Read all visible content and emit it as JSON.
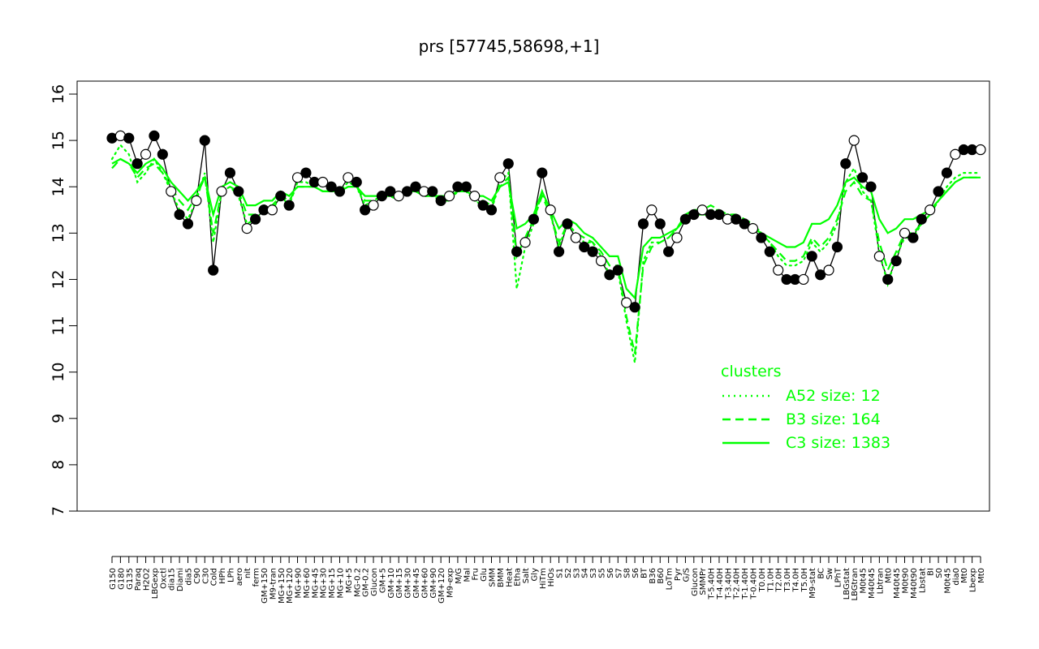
{
  "chart_data": {
    "type": "line",
    "title": "prs [57745,58698,+1]",
    "xlabel": "",
    "ylabel": "",
    "ylim": [
      7,
      16
    ],
    "yticks": [
      7,
      8,
      9,
      10,
      11,
      12,
      13,
      14,
      15,
      16
    ],
    "grid": false,
    "legend_placement": "bottom-right",
    "legend_title": "clusters",
    "legend_entries": [
      {
        "label": "A52 size: 12",
        "style": "dotted",
        "color": "#00ff00"
      },
      {
        "label": "B3 size: 164",
        "style": "dashed",
        "color": "#00ff00"
      },
      {
        "label": "C3 size: 1383",
        "style": "solid",
        "color": "#00ff00"
      }
    ],
    "x_tick_labels": [
      "G150",
      "G180",
      "G135",
      "Paraq",
      "H2O2",
      "LBGexp",
      "Oxctl",
      "dia15",
      "Diami",
      "dia5",
      "C90",
      "C30",
      "Cold",
      "HPh",
      "LPh",
      "aero",
      "nit",
      "ferm",
      "GM+150",
      "M9-tran",
      "MG+150",
      "MG+120",
      "MG+90",
      "MG+60",
      "MG+45",
      "MG+30",
      "MG+15",
      "MG+10",
      "MG+5",
      "MG-0.2",
      "GM-0.2",
      "Glucon",
      "GM+5",
      "GM+10",
      "GM+15",
      "GM+30",
      "GM+45",
      "GM+60",
      "GM+90",
      "GM+120",
      "M9-exp",
      "M/G",
      "Mal",
      "Fru",
      "Glu",
      "SMM",
      "BMM",
      "Heat",
      "Etha",
      "Salt",
      "Gly",
      "HiTm",
      "HiOs",
      "S1",
      "S2",
      "S3",
      "S4",
      "S3",
      "S5",
      "S6",
      "S7",
      "S8",
      "S6",
      "BT",
      "B36",
      "B60",
      "LoTm",
      "Pyr",
      "G/S",
      "Glucon",
      "SMMPr",
      "T-5.40H",
      "T-4.40H",
      "T-3.40H",
      "T-2.40H",
      "T-1.40H",
      "T-0.40H",
      "T0.0H",
      "T1.0H",
      "T2.0H",
      "T3.0H",
      "T4.0H",
      "T5.0H",
      "M9-stat",
      "BC",
      "Sw",
      "LPhT",
      "LBGstat",
      "LBGtran",
      "M0t45",
      "M40t45",
      "Lbtran",
      "Mt0",
      "M40t45",
      "M0t90",
      "M40t90",
      "Lbstat",
      "BI",
      "S0",
      "M0t45",
      "dia0",
      "Mt0",
      "Lbexp",
      "Mt0"
    ],
    "series": [
      {
        "name": "",
        "color": "#000000",
        "style": "points-and-line",
        "x": [
          1,
          2,
          3,
          4,
          5,
          6,
          7,
          8,
          9,
          10,
          11,
          12,
          13,
          14,
          15,
          16,
          17,
          18,
          19,
          20,
          21,
          22,
          23,
          24,
          25,
          26,
          27,
          28,
          29,
          30,
          31,
          32,
          33,
          34,
          35,
          36,
          37,
          38,
          39,
          40,
          41,
          42,
          43,
          44,
          45,
          46,
          47,
          48,
          49,
          50,
          51,
          52,
          53,
          54,
          55,
          56,
          57,
          58,
          59,
          60,
          61,
          62,
          63,
          64,
          65,
          66,
          67,
          68,
          69,
          70,
          71,
          72,
          73,
          74,
          75,
          76,
          77,
          78,
          79,
          80,
          81,
          82,
          83,
          84,
          85,
          86,
          87,
          88,
          89,
          90,
          91,
          92,
          93,
          94,
          95,
          96,
          97,
          98,
          99,
          100,
          101,
          102,
          103,
          104
        ],
        "y": [
          15.05,
          15.1,
          15.05,
          14.5,
          14.7,
          15.1,
          14.7,
          13.9,
          13.4,
          13.2,
          13.7,
          15.0,
          12.2,
          13.9,
          14.3,
          13.9,
          13.1,
          13.3,
          13.5,
          13.5,
          13.8,
          13.6,
          14.2,
          14.3,
          14.1,
          14.1,
          14.0,
          13.9,
          14.2,
          14.1,
          13.5,
          13.6,
          13.8,
          13.9,
          13.8,
          13.9,
          14.0,
          13.9,
          13.9,
          13.7,
          13.8,
          14.0,
          14.0,
          13.8,
          13.6,
          13.5,
          14.2,
          14.5,
          12.6,
          12.8,
          13.3,
          14.3,
          13.5,
          12.6,
          13.2,
          12.9,
          12.7,
          12.6,
          12.4,
          12.1,
          12.2,
          11.5,
          11.4,
          13.2,
          13.5,
          13.2,
          12.6,
          12.9,
          13.3,
          13.4,
          13.5,
          13.4,
          13.4,
          13.3,
          13.3,
          13.2,
          13.1,
          12.9,
          12.6,
          12.2,
          12.0,
          12.0,
          12.0,
          12.5,
          12.1,
          12.2,
          12.7,
          14.5,
          15.0,
          14.2,
          14.0,
          12.5,
          12.0,
          12.4,
          13.0,
          12.9,
          13.3,
          13.5,
          13.9,
          14.3,
          14.7,
          14.8,
          14.8,
          14.8
        ]
      },
      {
        "name": "",
        "color": "#00ff00",
        "style": "solid",
        "x": [
          1,
          2,
          3,
          4,
          5,
          6,
          7,
          8,
          9,
          10,
          11,
          12,
          13,
          14,
          15,
          16,
          17,
          18,
          19,
          20,
          21,
          22,
          23,
          24,
          25,
          26,
          27,
          28,
          29,
          30,
          31,
          32,
          33,
          34,
          35,
          36,
          37,
          38,
          39,
          40,
          41,
          42,
          43,
          44,
          45,
          46,
          47,
          48,
          49,
          50,
          51,
          52,
          53,
          54,
          55,
          56,
          57,
          58,
          59,
          60,
          61,
          62,
          63,
          64,
          65,
          66,
          67,
          68,
          69,
          70,
          71,
          72,
          73,
          74,
          75,
          76,
          77,
          78,
          79,
          80,
          81,
          82,
          83,
          84,
          85,
          86,
          87,
          88,
          89,
          90,
          91,
          92,
          93,
          94,
          95,
          96,
          97,
          98,
          99,
          100,
          101,
          102,
          103,
          104
        ],
        "y": [
          14.5,
          14.6,
          14.5,
          14.3,
          14.5,
          14.6,
          14.4,
          14.1,
          13.9,
          13.7,
          13.9,
          14.2,
          13.4,
          14.0,
          14.1,
          14.0,
          13.6,
          13.6,
          13.7,
          13.7,
          13.9,
          13.8,
          14.0,
          14.0,
          14.0,
          13.9,
          13.9,
          13.9,
          14.0,
          14.0,
          13.8,
          13.8,
          13.8,
          13.9,
          13.8,
          13.9,
          13.9,
          13.9,
          13.8,
          13.8,
          13.8,
          13.9,
          13.9,
          13.8,
          13.8,
          13.7,
          14.0,
          14.1,
          13.1,
          13.2,
          13.4,
          13.9,
          13.5,
          13.1,
          13.3,
          13.2,
          13.0,
          12.9,
          12.7,
          12.5,
          12.5,
          11.8,
          11.6,
          12.7,
          12.9,
          12.9,
          13.0,
          13.1,
          13.3,
          13.4,
          13.4,
          13.4,
          13.4,
          13.3,
          13.3,
          13.2,
          13.1,
          13.0,
          12.9,
          12.8,
          12.7,
          12.7,
          12.8,
          13.2,
          13.2,
          13.3,
          13.6,
          14.1,
          14.2,
          14.0,
          13.9,
          13.3,
          13.0,
          13.1,
          13.3,
          13.3,
          13.4,
          13.5,
          13.7,
          13.9,
          14.1,
          14.2,
          14.2,
          14.2
        ]
      },
      {
        "name": "",
        "color": "#00ff00",
        "style": "dashed",
        "x": [
          1,
          2,
          3,
          4,
          5,
          6,
          7,
          8,
          9,
          10,
          11,
          12,
          13,
          14,
          15,
          16,
          17,
          18,
          19,
          20,
          21,
          22,
          23,
          24,
          25,
          26,
          27,
          28,
          29,
          30,
          31,
          32,
          33,
          34,
          35,
          36,
          37,
          38,
          39,
          40,
          41,
          42,
          43,
          44,
          45,
          46,
          47,
          48,
          49,
          50,
          51,
          52,
          53,
          54,
          55,
          56,
          57,
          58,
          59,
          60,
          61,
          62,
          63,
          64,
          65,
          66,
          67,
          68,
          69,
          70,
          71,
          72,
          73,
          74,
          75,
          76,
          77,
          78,
          79,
          80,
          81,
          82,
          83,
          84,
          85,
          86,
          87,
          88,
          89,
          90,
          91,
          92,
          93,
          94,
          95,
          96,
          97,
          98,
          99,
          100,
          101,
          102,
          103,
          104
        ],
        "y": [
          14.4,
          14.6,
          14.5,
          14.2,
          14.4,
          14.5,
          14.3,
          14.0,
          13.7,
          13.5,
          13.8,
          14.2,
          13.0,
          13.9,
          14.0,
          13.9,
          13.4,
          13.4,
          13.6,
          13.6,
          13.8,
          13.7,
          14.0,
          14.0,
          14.0,
          13.9,
          13.9,
          13.9,
          14.0,
          14.0,
          13.7,
          13.7,
          13.8,
          13.8,
          13.8,
          13.9,
          13.9,
          13.8,
          13.8,
          13.7,
          13.8,
          13.9,
          13.9,
          13.7,
          13.7,
          13.6,
          14.0,
          14.2,
          12.5,
          12.9,
          13.3,
          13.8,
          13.4,
          12.8,
          13.2,
          13.0,
          12.9,
          12.8,
          12.6,
          12.3,
          12.3,
          11.2,
          10.4,
          12.3,
          12.7,
          12.8,
          12.9,
          13.1,
          13.4,
          13.5,
          13.5,
          13.6,
          13.5,
          13.4,
          13.4,
          13.3,
          13.2,
          13.0,
          12.8,
          12.6,
          12.4,
          12.4,
          12.5,
          12.9,
          12.7,
          12.9,
          13.3,
          13.9,
          14.1,
          13.8,
          13.7,
          12.8,
          12.2,
          12.6,
          13.0,
          13.0,
          13.2,
          13.4,
          13.7,
          13.9,
          14.1,
          14.2,
          14.2,
          14.2
        ]
      },
      {
        "name": "",
        "color": "#00ff00",
        "style": "dotted",
        "x": [
          1,
          2,
          3,
          4,
          5,
          6,
          7,
          8,
          9,
          10,
          11,
          12,
          13,
          14,
          15,
          16,
          17,
          18,
          19,
          20,
          21,
          22,
          23,
          24,
          25,
          26,
          27,
          28,
          29,
          30,
          31,
          32,
          33,
          34,
          35,
          36,
          37,
          38,
          39,
          40,
          41,
          42,
          43,
          44,
          45,
          46,
          47,
          48,
          49,
          50,
          51,
          52,
          53,
          54,
          55,
          56,
          57,
          58,
          59,
          60,
          61,
          62,
          63,
          64,
          65,
          66,
          67,
          68,
          69,
          70,
          71,
          72,
          73,
          74,
          75,
          76,
          77,
          78,
          79,
          80,
          81,
          82,
          83,
          84,
          85,
          86,
          87,
          88,
          89,
          90,
          91,
          92,
          93,
          94,
          95,
          96,
          97,
          98,
          99,
          100,
          101,
          102,
          103,
          104
        ],
        "y": [
          14.6,
          14.9,
          14.7,
          14.1,
          14.3,
          14.6,
          14.3,
          13.9,
          13.5,
          13.3,
          13.7,
          14.3,
          12.8,
          13.9,
          14.0,
          13.8,
          13.2,
          13.3,
          13.5,
          13.5,
          13.8,
          13.6,
          14.1,
          14.1,
          14.0,
          13.9,
          13.9,
          13.9,
          14.1,
          14.0,
          13.6,
          13.7,
          13.8,
          13.8,
          13.7,
          13.9,
          13.9,
          13.8,
          13.8,
          13.7,
          13.7,
          13.9,
          13.9,
          13.7,
          13.6,
          13.5,
          14.1,
          14.3,
          11.8,
          12.7,
          13.2,
          13.9,
          13.4,
          12.7,
          13.2,
          13.0,
          12.8,
          12.8,
          12.5,
          12.1,
          12.2,
          11.1,
          10.2,
          12.4,
          12.8,
          12.8,
          12.9,
          13.1,
          13.4,
          13.5,
          13.5,
          13.5,
          13.5,
          13.4,
          13.4,
          13.3,
          13.2,
          13.0,
          12.8,
          12.5,
          12.3,
          12.3,
          12.4,
          12.8,
          12.6,
          12.8,
          13.2,
          14.1,
          14.4,
          13.9,
          13.7,
          12.6,
          11.9,
          12.5,
          12.9,
          12.9,
          13.2,
          13.4,
          13.7,
          14.0,
          14.2,
          14.3,
          14.3,
          14.3
        ]
      }
    ]
  }
}
